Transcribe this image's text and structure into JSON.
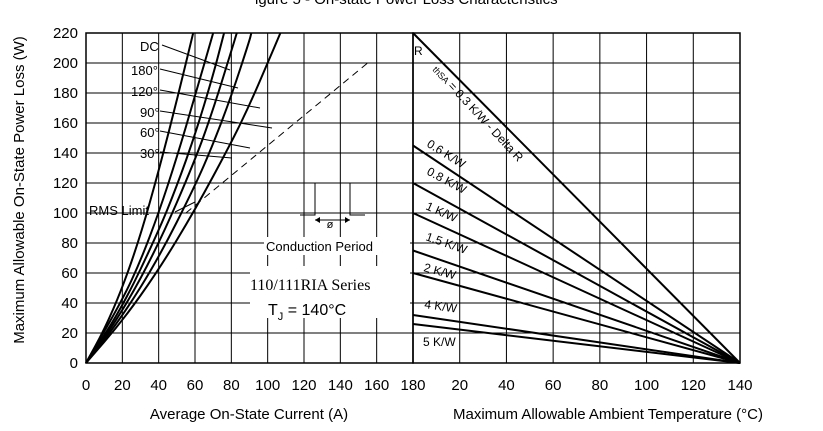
{
  "figure": {
    "title_partial": "igure 5 - On-state Power Loss Characteristics",
    "series_label": "110/111RIA Series",
    "tj_label": "T",
    "tj_sub": "J",
    "tj_value": " = 140°C",
    "conduction_label": "Conduction Period",
    "phi_label": "ø",
    "rms_label": "RMS Limit"
  },
  "chart_data": [
    {
      "type": "line",
      "ylabel": "Maximum Allowable On-State Power Loss (W)",
      "xlabel": "Average On-State Current (A)",
      "xlim": [
        0,
        180
      ],
      "ylim": [
        0,
        220
      ],
      "x_ticks": [
        "0",
        "20",
        "40",
        "60",
        "80",
        "100",
        "120",
        "140",
        "160",
        "180"
      ],
      "y_ticks": [
        "0",
        "20",
        "40",
        "60",
        "80",
        "100",
        "120",
        "140",
        "160",
        "180",
        "200",
        "220"
      ],
      "grid": true,
      "series": [
        {
          "name": "DC",
          "points": [
            [
              0,
              0
            ],
            [
              20,
              28
            ],
            [
              40,
              62
            ],
            [
              60,
              102
            ],
            [
              80,
              147
            ],
            [
              90,
              172
            ],
            [
              100,
              200
            ],
            [
              107,
              220
            ]
          ]
        },
        {
          "name": "180°",
          "points": [
            [
              0,
              0
            ],
            [
              20,
              31
            ],
            [
              40,
              70
            ],
            [
              60,
              118
            ],
            [
              70,
              146
            ],
            [
              80,
              178
            ],
            [
              90,
              215
            ],
            [
              91,
              220
            ]
          ]
        },
        {
          "name": "120°",
          "points": [
            [
              0,
              0
            ],
            [
              20,
              34
            ],
            [
              40,
              79
            ],
            [
              60,
              135
            ],
            [
              70,
              169
            ],
            [
              80,
              208
            ],
            [
              83,
              220
            ]
          ]
        },
        {
          "name": "90°",
          "points": [
            [
              0,
              0
            ],
            [
              20,
              37
            ],
            [
              40,
              88
            ],
            [
              50,
              118
            ],
            [
              60,
              152
            ],
            [
              70,
              192
            ],
            [
              76,
              220
            ]
          ]
        },
        {
          "name": "60°",
          "points": [
            [
              0,
              0
            ],
            [
              20,
              42
            ],
            [
              30,
              68
            ],
            [
              40,
              100
            ],
            [
              50,
              137
            ],
            [
              60,
              178
            ],
            [
              70,
              220
            ]
          ]
        },
        {
          "name": "30°",
          "points": [
            [
              0,
              0
            ],
            [
              10,
              22
            ],
            [
              20,
              50
            ],
            [
              30,
              85
            ],
            [
              40,
              128
            ],
            [
              50,
              175
            ],
            [
              59,
              220
            ]
          ]
        },
        {
          "name": "RMS Limit",
          "style": "dashed",
          "points": [
            [
              55,
              100
            ],
            [
              155,
              200
            ]
          ]
        }
      ],
      "annotations": [
        "DC",
        "180°",
        "120°",
        "90°",
        "60°",
        "30°",
        "RMS Limit"
      ]
    },
    {
      "type": "line",
      "xlabel": "Maximum Allowable Ambient Temperature (°C)",
      "xlim": [
        180,
        140
      ],
      "x_ticks": [
        "180",
        "20",
        "40",
        "60",
        "80",
        "100",
        "120",
        "140"
      ],
      "x_axis_note": "ambient temperature decreases toward left; 180 at far left is shared corner with left panel",
      "ylim": [
        0,
        220
      ],
      "grid": true,
      "series": [
        {
          "name": "R thSA = 0.3 K/W - Delta R",
          "points": [
            [
              180,
              220
            ],
            [
              140,
              0
            ]
          ]
        },
        {
          "name": "0.6 K/W",
          "points": [
            [
              180,
              145
            ],
            [
              140,
              0
            ]
          ]
        },
        {
          "name": "0.8 K/W",
          "points": [
            [
              180,
              120
            ],
            [
              140,
              0
            ]
          ]
        },
        {
          "name": "1 K/W",
          "points": [
            [
              180,
              100
            ],
            [
              140,
              0
            ]
          ]
        },
        {
          "name": "1.5 K/W",
          "points": [
            [
              180,
              75
            ],
            [
              140,
              0
            ]
          ]
        },
        {
          "name": "2 K/W",
          "points": [
            [
              180,
              60
            ],
            [
              140,
              0
            ]
          ]
        },
        {
          "name": "4 K/W",
          "points": [
            [
              180,
              32
            ],
            [
              140,
              0
            ]
          ]
        },
        {
          "name": "5 K/W",
          "points": [
            [
              180,
              26
            ],
            [
              140,
              0
            ]
          ]
        }
      ],
      "annotations": [
        "R",
        "thSA",
        "= 0.3 K/W - Delta R",
        "0.6 K/W",
        "0.8 K/W",
        "1 K/W",
        "1.5 K/W",
        "2 K/W",
        "4 K/W",
        "5 K/W"
      ]
    }
  ]
}
